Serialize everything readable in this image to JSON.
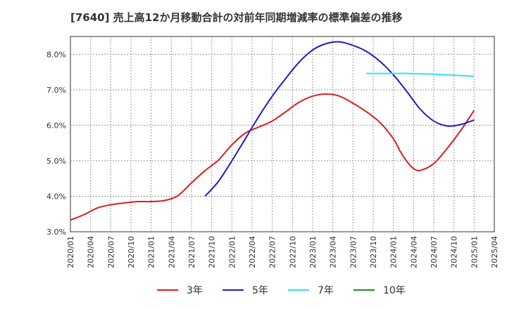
{
  "title": "[7640]  売上高12か月移動合計の対前年同期増減率の標準偏差の推移",
  "chart_data": {
    "type": "line",
    "title": "[7640]  売上高12か月移動合計の対前年同期増減率の標準偏差の推移",
    "xlabel": "",
    "ylabel": "",
    "ylim": [
      3.0,
      8.5
    ],
    "y_ticks": [
      "3.0%",
      "4.0%",
      "5.0%",
      "6.0%",
      "7.0%",
      "8.0%"
    ],
    "y_tick_values": [
      3.0,
      4.0,
      5.0,
      6.0,
      7.0,
      8.0
    ],
    "x_ticks": [
      "2020/01",
      "2020/04",
      "2020/07",
      "2020/10",
      "2021/01",
      "2021/04",
      "2021/07",
      "2021/10",
      "2022/01",
      "2022/04",
      "2022/07",
      "2022/10",
      "2023/01",
      "2023/04",
      "2023/07",
      "2023/10",
      "2024/01",
      "2024/04",
      "2024/07",
      "2024/10",
      "2025/01",
      "2025/04"
    ],
    "grid": true,
    "legend_position": "bottom",
    "series": [
      {
        "name": "3年",
        "color": "#dd1c1c",
        "x": [
          "2020/01",
          "2020/03",
          "2020/05",
          "2020/07",
          "2020/09",
          "2020/11",
          "2021/01",
          "2021/03",
          "2021/05",
          "2021/07",
          "2021/09",
          "2021/11",
          "2022/01",
          "2022/03",
          "2022/05",
          "2022/07",
          "2022/09",
          "2022/11",
          "2023/01",
          "2023/03",
          "2023/05",
          "2023/07",
          "2023/09",
          "2023/11",
          "2024/01",
          "2024/02",
          "2024/03",
          "2024/04",
          "2024/05",
          "2024/07",
          "2024/09",
          "2024/11",
          "2025/01"
        ],
        "values": [
          3.33,
          3.48,
          3.67,
          3.76,
          3.81,
          3.85,
          3.85,
          3.88,
          4.02,
          4.38,
          4.72,
          5.02,
          5.45,
          5.78,
          5.95,
          6.12,
          6.38,
          6.65,
          6.82,
          6.88,
          6.82,
          6.62,
          6.38,
          6.08,
          5.62,
          5.27,
          4.98,
          4.78,
          4.73,
          4.92,
          5.35,
          5.85,
          6.42
        ]
      },
      {
        "name": "5年",
        "color": "#1c1cc8",
        "x": [
          "2021/09",
          "2021/11",
          "2022/01",
          "2022/03",
          "2022/05",
          "2022/07",
          "2022/09",
          "2022/11",
          "2023/01",
          "2023/03",
          "2023/05",
          "2023/07",
          "2023/09",
          "2023/11",
          "2024/01",
          "2024/03",
          "2024/05",
          "2024/07",
          "2024/09",
          "2024/11",
          "2025/01"
        ],
        "values": [
          4.0,
          4.42,
          5.0,
          5.62,
          6.25,
          6.82,
          7.32,
          7.78,
          8.12,
          8.3,
          8.35,
          8.25,
          8.08,
          7.8,
          7.42,
          6.95,
          6.45,
          6.12,
          5.98,
          6.02,
          6.15
        ]
      },
      {
        "name": "7年",
        "color": "#33e0f0",
        "x": [
          "2023/09",
          "2023/11",
          "2024/01",
          "2024/03",
          "2024/05",
          "2024/07",
          "2024/09",
          "2024/11",
          "2025/01"
        ],
        "values": [
          7.46,
          7.46,
          7.46,
          7.46,
          7.45,
          7.44,
          7.42,
          7.4,
          7.38
        ]
      },
      {
        "name": "10年",
        "color": "#1c8a1c",
        "x": [],
        "values": []
      }
    ]
  }
}
